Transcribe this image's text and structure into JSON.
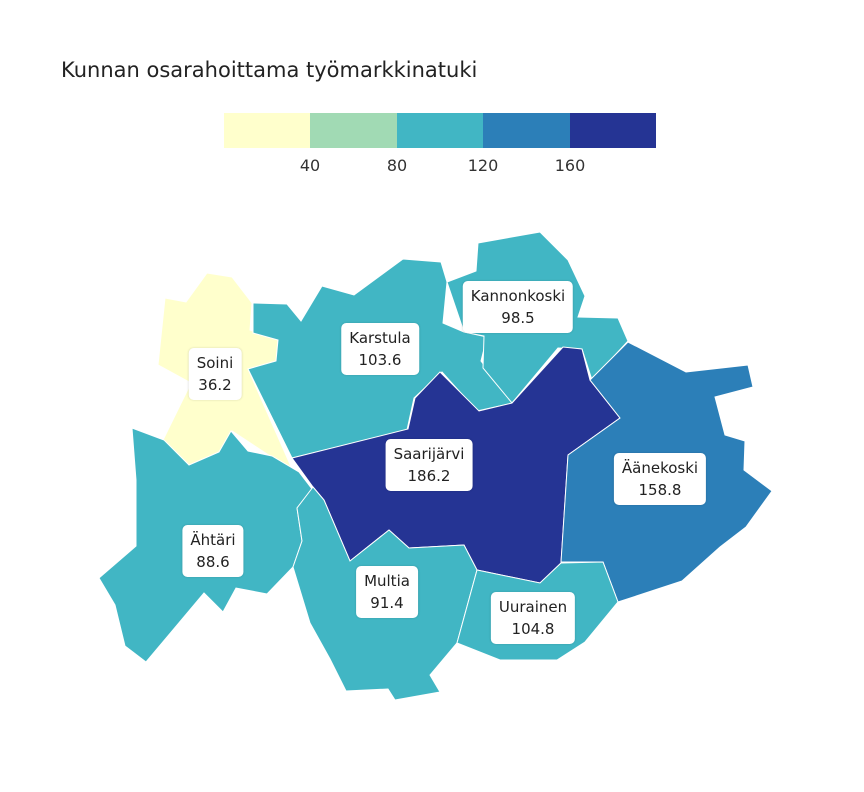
{
  "title": "Kunnan osarahoittama työmarkkinatuki",
  "legend": {
    "colors": [
      "#ffffcc",
      "#a1dab4",
      "#41b6c4",
      "#2c7fb8",
      "#253494"
    ],
    "ticks": [
      "40",
      "80",
      "120",
      "160"
    ]
  },
  "municipalities": [
    {
      "name": "Soini",
      "value": "36.2",
      "color": "#ffffcc"
    },
    {
      "name": "Karstula",
      "value": "103.6",
      "color": "#41b6c4"
    },
    {
      "name": "Kannonkoski",
      "value": "98.5",
      "color": "#41b6c4"
    },
    {
      "name": "Saarijärvi",
      "value": "186.2",
      "color": "#253494"
    },
    {
      "name": "Äänekoski",
      "value": "158.8",
      "color": "#2c7fb8"
    },
    {
      "name": "Ähtäri",
      "value": "88.6",
      "color": "#41b6c4"
    },
    {
      "name": "Multia",
      "value": "91.4",
      "color": "#41b6c4"
    },
    {
      "name": "Uurainen",
      "value": "104.8",
      "color": "#41b6c4"
    }
  ]
}
